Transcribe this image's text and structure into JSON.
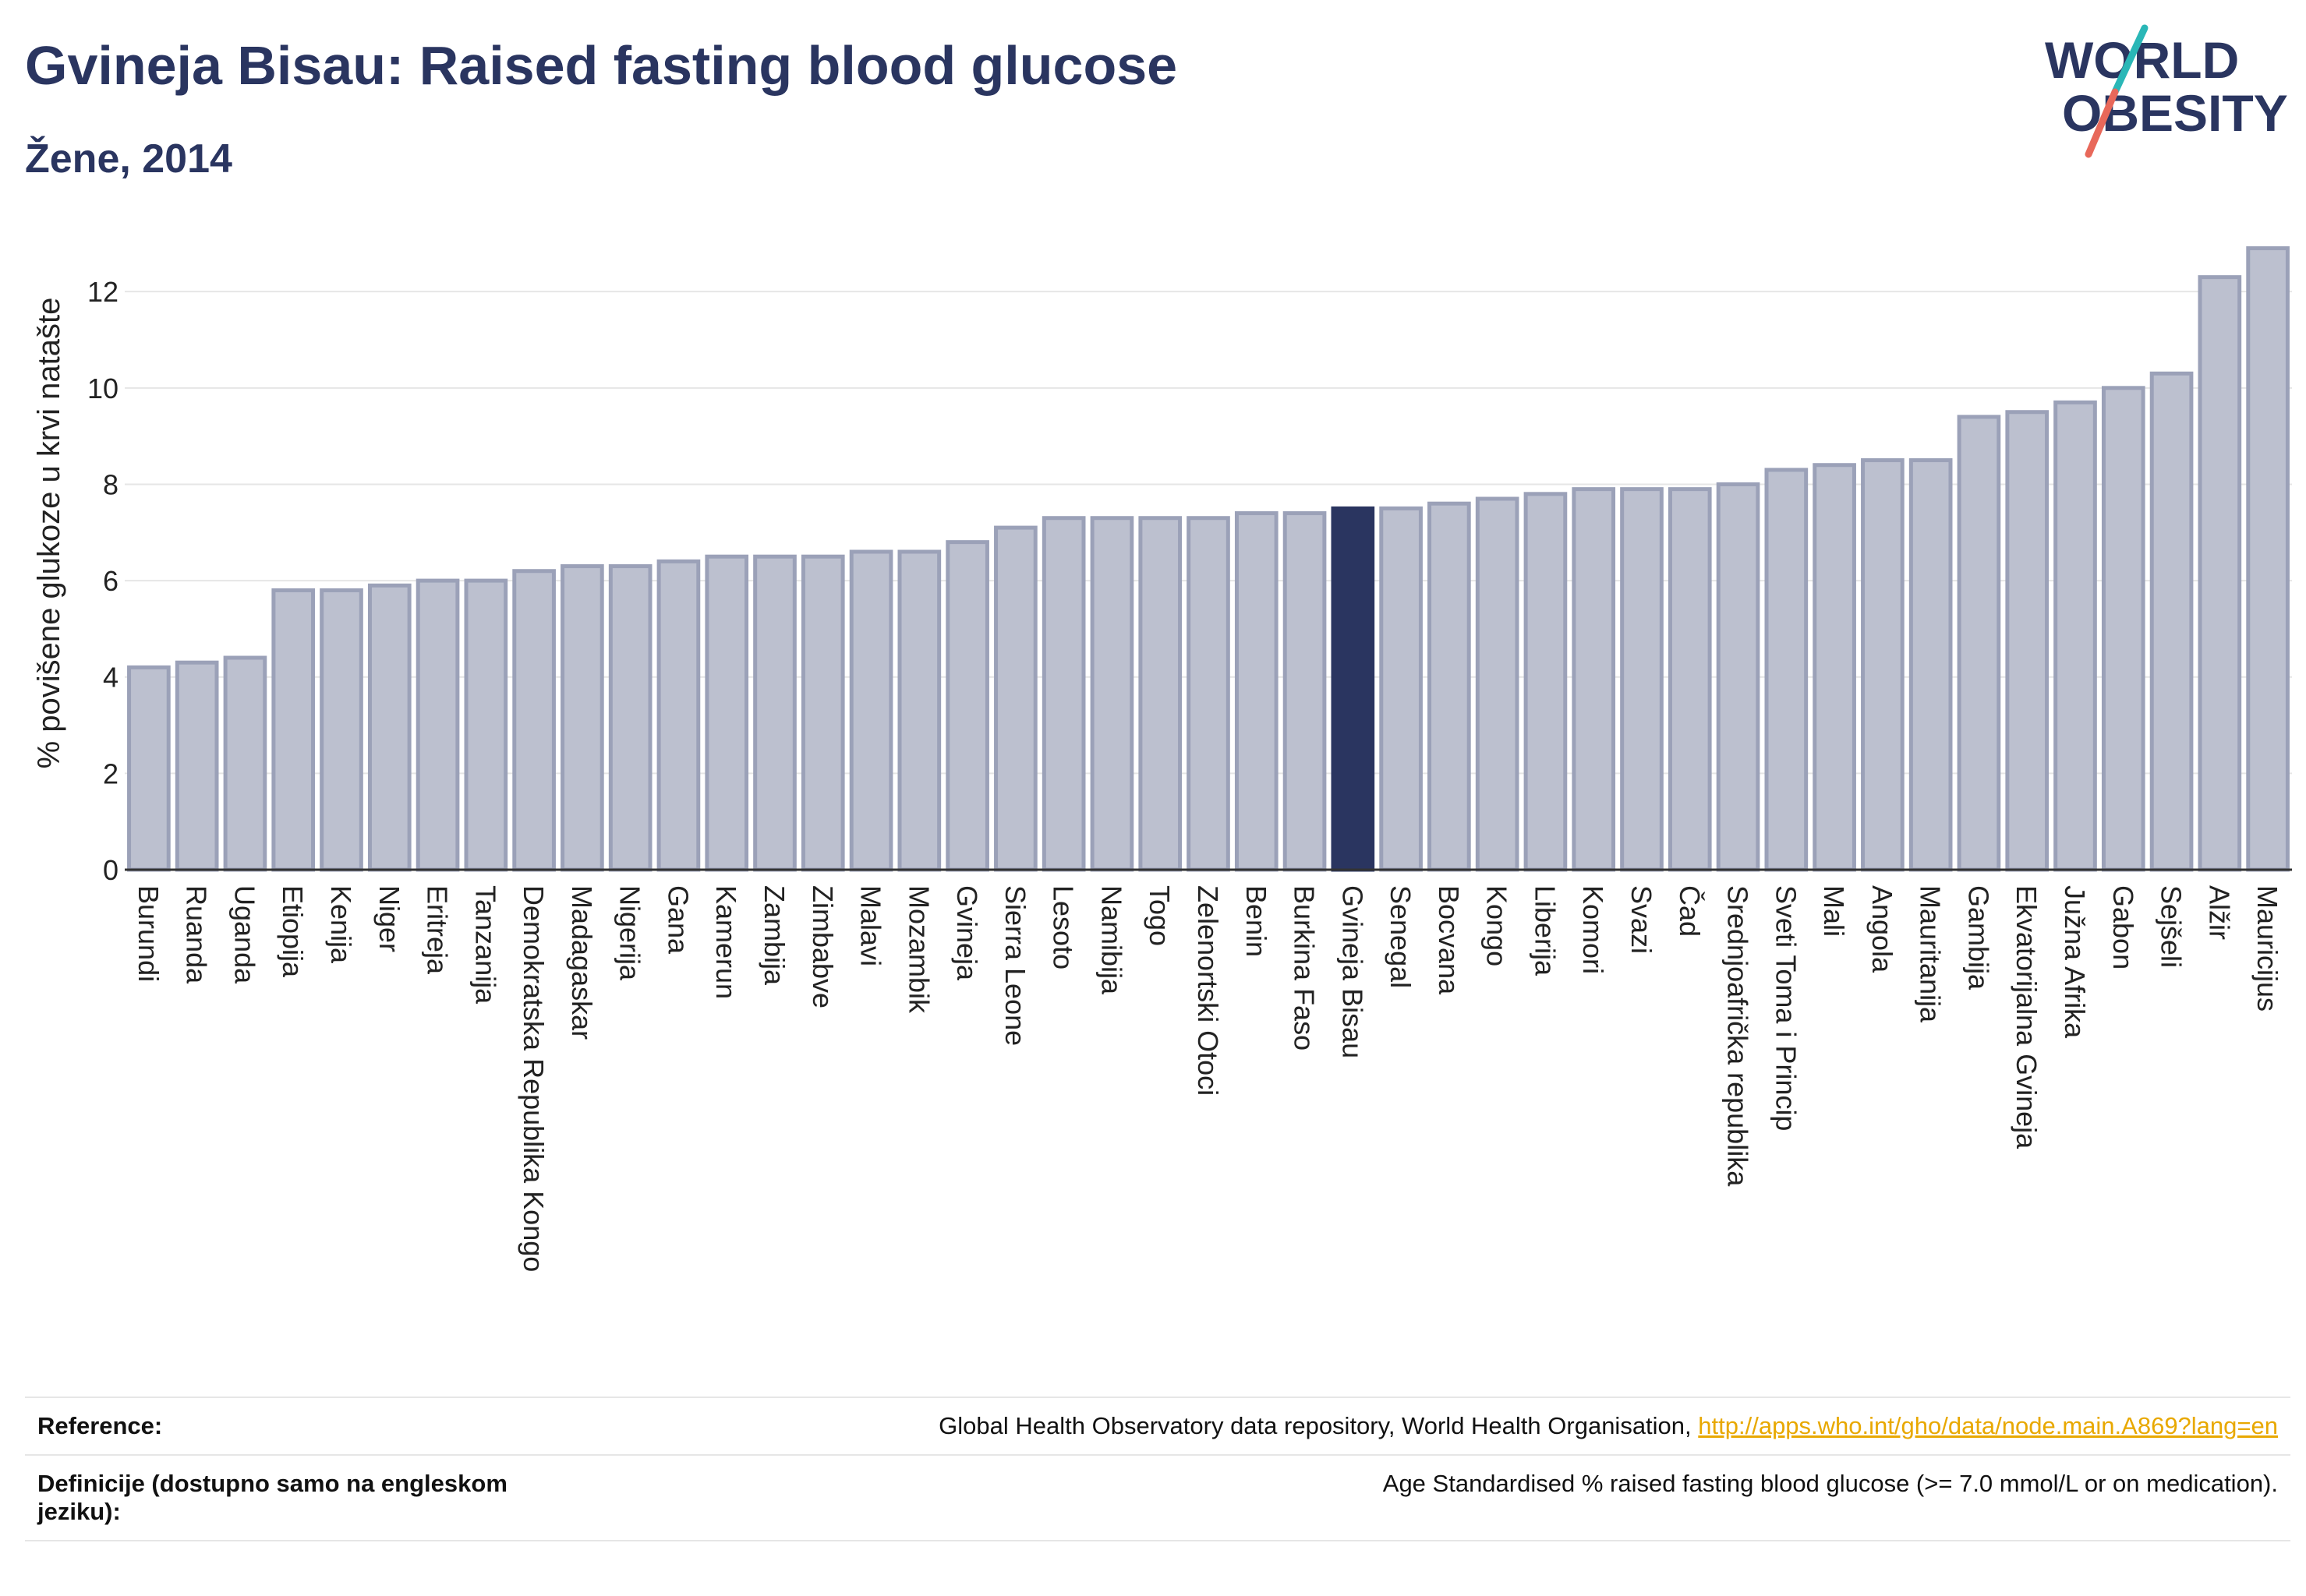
{
  "header": {
    "title": "Gvineja Bisau: Raised fasting blood glucose",
    "subtitle": "Žene, 2014"
  },
  "logo": {
    "line1": "WORLD",
    "line2": "OBESITY",
    "colors": {
      "text": "#2a3560",
      "slash_teal": "#2ab7b7",
      "slash_coral": "#e8685a"
    }
  },
  "colors": {
    "bar_default": "#bcc0cf",
    "bar_default_stroke": "#9ba1b8",
    "bar_highlight": "#2a3560",
    "grid": "#e6e6e6"
  },
  "chart_data": {
    "type": "bar",
    "title": "Gvineja Bisau: Raised fasting blood glucose",
    "subtitle": "Žene, 2014",
    "ylabel": "% povišene glukoze u krvi natašte",
    "xlabel": "",
    "ylim": [
      0,
      13.2
    ],
    "yticks": [
      0,
      2,
      4,
      6,
      8,
      10,
      12
    ],
    "grid": true,
    "highlight": "Gvineja Bisau",
    "categories": [
      "Burundi",
      "Ruanda",
      "Uganda",
      "Etiopija",
      "Kenija",
      "Niger",
      "Eritreja",
      "Tanzanija",
      "Demokratska Republika Kongo",
      "Madagaskar",
      "Nigerija",
      "Gana",
      "Kamerun",
      "Zambija",
      "Zimbabve",
      "Malavi",
      "Mozambik",
      "Gvineja",
      "Sierra Leone",
      "Lesoto",
      "Namibija",
      "Togo",
      "Zelenortski Otoci",
      "Benin",
      "Burkina Faso",
      "Gvineja Bisau",
      "Senegal",
      "Bocvana",
      "Kongo",
      "Liberija",
      "Komori",
      "Svazi",
      "Čad",
      "Srednjoafrička republika",
      "Sveti Toma i Princip",
      "Mali",
      "Angola",
      "Mauritanija",
      "Gambija",
      "Ekvatorijalna Gvineja",
      "Južna Afrika",
      "Gabon",
      "Sejšeli",
      "Alžir",
      "Mauricijus"
    ],
    "values": [
      4.2,
      4.3,
      4.4,
      5.8,
      5.8,
      5.9,
      6.0,
      6.0,
      6.2,
      6.3,
      6.3,
      6.4,
      6.5,
      6.5,
      6.5,
      6.6,
      6.6,
      6.8,
      7.1,
      7.3,
      7.3,
      7.3,
      7.3,
      7.4,
      7.4,
      7.5,
      7.5,
      7.6,
      7.7,
      7.8,
      7.9,
      7.9,
      7.9,
      8.0,
      8.3,
      8.4,
      8.5,
      8.5,
      9.4,
      9.5,
      9.7,
      10.0,
      10.3,
      12.3,
      12.9
    ]
  },
  "reference": {
    "label": "Reference:",
    "text": "Global Health Observatory data repository, World Health Organisation,",
    "link": "http://apps.who.int/gho/data/node.main.A869?lang=en"
  },
  "definition": {
    "label": "Definicije (dostupno samo na engleskom jeziku):",
    "text": "Age Standardised % raised fasting blood glucose (>= 7.0 mmol/L or on medication)."
  }
}
